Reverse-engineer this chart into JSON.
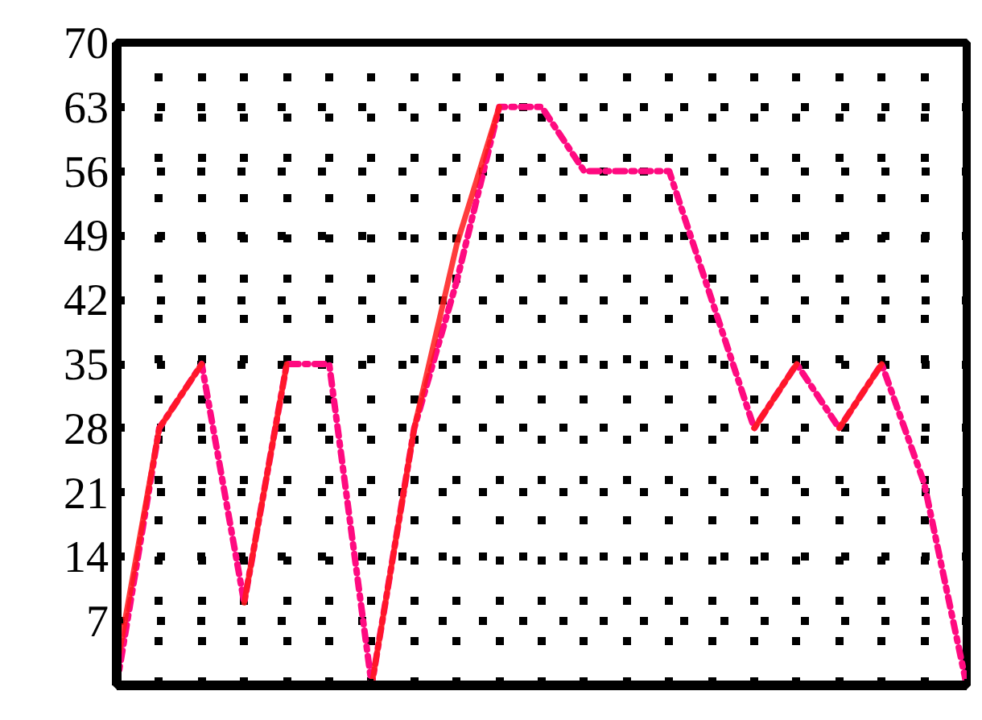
{
  "chart_data": {
    "type": "line",
    "categories": [
      null,
      null,
      null,
      null,
      null,
      null,
      null,
      null,
      null,
      null,
      null,
      null,
      null,
      null,
      null,
      null,
      null,
      null,
      null,
      null,
      null
    ],
    "series": [
      {
        "color": "#ff0a80",
        "line_style": "dashdot",
        "values": [
          0,
          28,
          35,
          9,
          35,
          35,
          0,
          28,
          44,
          63,
          63,
          56,
          56,
          56,
          42,
          28,
          35,
          28,
          35,
          22,
          0
        ]
      },
      {
        "color": "#ff1a1a",
        "values": [
          2,
          28,
          35,
          null,
          null,
          null,
          null,
          null,
          null,
          null,
          null,
          null,
          null,
          null,
          null,
          null,
          null,
          null,
          null,
          null,
          null
        ]
      },
      {
        "color": "#ff1a1a",
        "values": [
          null,
          null,
          null,
          9,
          35,
          null,
          null,
          null,
          null,
          null,
          null,
          null,
          null,
          null,
          null,
          null,
          null,
          null,
          null,
          null,
          null
        ]
      },
      {
        "color": "#ff1a1a",
        "values": [
          null,
          null,
          null,
          null,
          null,
          null,
          0,
          28,
          48,
          63,
          null,
          null,
          null,
          null,
          null,
          null,
          null,
          null,
          null,
          null,
          null
        ]
      },
      {
        "color": "#ff1a1a",
        "values": [
          null,
          null,
          null,
          null,
          null,
          null,
          null,
          null,
          null,
          null,
          null,
          null,
          null,
          null,
          null,
          28,
          35,
          null,
          null,
          null,
          null
        ]
      },
      {
        "color": "#ff1a1a",
        "values": [
          null,
          null,
          null,
          null,
          null,
          null,
          null,
          null,
          null,
          null,
          null,
          null,
          null,
          null,
          null,
          null,
          null,
          28,
          35,
          null,
          null
        ]
      }
    ],
    "ylim": [
      0,
      70
    ],
    "yticks": [
      {
        "value": 0,
        "label": null
      },
      7,
      14,
      21,
      28,
      35,
      42,
      49,
      56,
      63,
      70
    ],
    "grid": true,
    "tick_labels": "y",
    "marker": "none",
    "line_style": "solid"
  }
}
